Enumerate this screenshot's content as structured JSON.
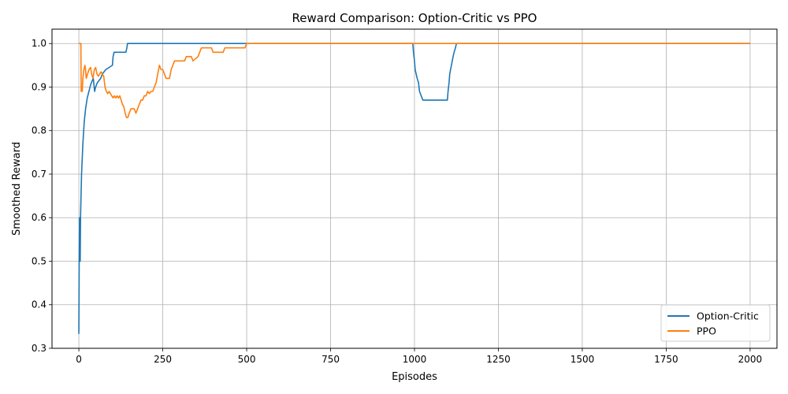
{
  "chart_data": {
    "type": "line",
    "title": "Reward Comparison: Option-Critic vs PPO",
    "xlabel": "Episodes",
    "ylabel": "Smoothed Reward",
    "xlim": [
      -80,
      2080
    ],
    "ylim": [
      0.3,
      1.033
    ],
    "xticks": [
      0,
      250,
      500,
      750,
      1000,
      1250,
      1500,
      1750,
      2000
    ],
    "yticks": [
      0.3,
      0.4,
      0.5,
      0.6,
      0.7,
      0.8,
      0.9,
      1.0
    ],
    "xtick_labels": [
      "0",
      "250",
      "500",
      "750",
      "1000",
      "1250",
      "1500",
      "1750",
      "2000"
    ],
    "ytick_labels": [
      "0.3",
      "0.4",
      "0.5",
      "0.6",
      "0.7",
      "0.8",
      "0.9",
      "1.0"
    ],
    "grid": true,
    "legend_position": "lower-right",
    "series": [
      {
        "name": "Option-Critic",
        "color": "#1f77b4",
        "points": [
          [
            0,
            0.333
          ],
          [
            1,
            0.5
          ],
          [
            2,
            0.6
          ],
          [
            3,
            0.5
          ],
          [
            4,
            0.5
          ],
          [
            5,
            0.6
          ],
          [
            8,
            0.7
          ],
          [
            12,
            0.77
          ],
          [
            16,
            0.82
          ],
          [
            20,
            0.85
          ],
          [
            25,
            0.875
          ],
          [
            30,
            0.89
          ],
          [
            35,
            0.905
          ],
          [
            40,
            0.915
          ],
          [
            43,
            0.92
          ],
          [
            45,
            0.905
          ],
          [
            47,
            0.89
          ],
          [
            50,
            0.9
          ],
          [
            55,
            0.91
          ],
          [
            60,
            0.915
          ],
          [
            65,
            0.92
          ],
          [
            70,
            0.93
          ],
          [
            80,
            0.94
          ],
          [
            90,
            0.945
          ],
          [
            100,
            0.95
          ],
          [
            101,
            0.96
          ],
          [
            102,
            0.97
          ],
          [
            105,
            0.98
          ],
          [
            140,
            0.98
          ],
          [
            143,
            0.99
          ],
          [
            145,
            1.0
          ],
          [
            500,
            1.0
          ],
          [
            995,
            1.0
          ],
          [
            997,
            0.98
          ],
          [
            1000,
            0.96
          ],
          [
            1002,
            0.94
          ],
          [
            1005,
            0.93
          ],
          [
            1008,
            0.92
          ],
          [
            1012,
            0.91
          ],
          [
            1015,
            0.89
          ],
          [
            1020,
            0.88
          ],
          [
            1025,
            0.87
          ],
          [
            1098,
            0.87
          ],
          [
            1100,
            0.89
          ],
          [
            1103,
            0.91
          ],
          [
            1105,
            0.93
          ],
          [
            1110,
            0.95
          ],
          [
            1115,
            0.97
          ],
          [
            1118,
            0.98
          ],
          [
            1122,
            0.99
          ],
          [
            1125,
            1.0
          ],
          [
            2000,
            1.0
          ]
        ]
      },
      {
        "name": "PPO",
        "color": "#ff7f0e",
        "points": [
          [
            0,
            1.0
          ],
          [
            6,
            1.0
          ],
          [
            7,
            0.89
          ],
          [
            10,
            0.89
          ],
          [
            12,
            0.92
          ],
          [
            15,
            0.94
          ],
          [
            18,
            0.95
          ],
          [
            20,
            0.94
          ],
          [
            22,
            0.92
          ],
          [
            26,
            0.93
          ],
          [
            30,
            0.94
          ],
          [
            35,
            0.945
          ],
          [
            38,
            0.93
          ],
          [
            42,
            0.92
          ],
          [
            46,
            0.94
          ],
          [
            50,
            0.945
          ],
          [
            54,
            0.93
          ],
          [
            58,
            0.925
          ],
          [
            62,
            0.93
          ],
          [
            66,
            0.935
          ],
          [
            70,
            0.93
          ],
          [
            74,
            0.925
          ],
          [
            78,
            0.9
          ],
          [
            82,
            0.89
          ],
          [
            86,
            0.885
          ],
          [
            90,
            0.89
          ],
          [
            94,
            0.885
          ],
          [
            98,
            0.88
          ],
          [
            102,
            0.875
          ],
          [
            106,
            0.88
          ],
          [
            110,
            0.875
          ],
          [
            114,
            0.88
          ],
          [
            118,
            0.875
          ],
          [
            122,
            0.88
          ],
          [
            126,
            0.87
          ],
          [
            130,
            0.86
          ],
          [
            134,
            0.855
          ],
          [
            138,
            0.84
          ],
          [
            142,
            0.83
          ],
          [
            146,
            0.83
          ],
          [
            150,
            0.84
          ],
          [
            155,
            0.85
          ],
          [
            160,
            0.85
          ],
          [
            165,
            0.85
          ],
          [
            170,
            0.84
          ],
          [
            175,
            0.85
          ],
          [
            180,
            0.86
          ],
          [
            185,
            0.87
          ],
          [
            190,
            0.87
          ],
          [
            195,
            0.88
          ],
          [
            200,
            0.88
          ],
          [
            205,
            0.89
          ],
          [
            210,
            0.885
          ],
          [
            215,
            0.89
          ],
          [
            220,
            0.89
          ],
          [
            225,
            0.9
          ],
          [
            230,
            0.91
          ],
          [
            235,
            0.93
          ],
          [
            240,
            0.95
          ],
          [
            245,
            0.94
          ],
          [
            250,
            0.94
          ],
          [
            255,
            0.93
          ],
          [
            260,
            0.92
          ],
          [
            270,
            0.92
          ],
          [
            275,
            0.94
          ],
          [
            280,
            0.95
          ],
          [
            285,
            0.96
          ],
          [
            300,
            0.96
          ],
          [
            315,
            0.96
          ],
          [
            320,
            0.97
          ],
          [
            335,
            0.97
          ],
          [
            340,
            0.96
          ],
          [
            355,
            0.97
          ],
          [
            360,
            0.98
          ],
          [
            365,
            0.99
          ],
          [
            395,
            0.99
          ],
          [
            400,
            0.98
          ],
          [
            430,
            0.98
          ],
          [
            435,
            0.99
          ],
          [
            495,
            0.99
          ],
          [
            500,
            1.0
          ],
          [
            2000,
            1.0
          ]
        ]
      }
    ]
  }
}
